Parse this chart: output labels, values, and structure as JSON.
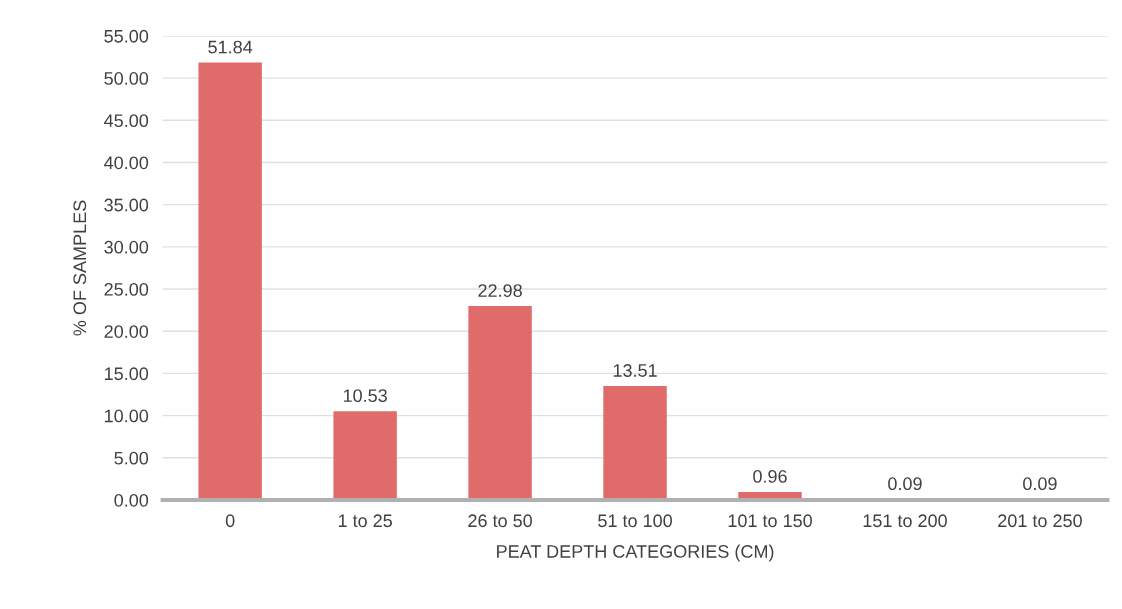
{
  "chart_data": {
    "type": "bar",
    "xlabel": "PEAT DEPTH CATEGORIES (CM)",
    "ylabel": "% OF SAMPLES",
    "categories": [
      "0",
      "1 to 25",
      "26 to 50",
      "51 to 100",
      "101 to 150",
      "151 to 200",
      "201 to 250"
    ],
    "values": [
      51.84,
      10.53,
      22.98,
      13.51,
      0.96,
      0.09,
      0.09
    ],
    "color": "#e06b6b",
    "ylim": [
      0,
      55
    ],
    "yticks": [
      {
        "value": 0,
        "label": "0.00"
      },
      {
        "value": 5,
        "label": "5.00"
      },
      {
        "value": 10,
        "label": "10.00"
      },
      {
        "value": 15,
        "label": "15.00"
      },
      {
        "value": 20,
        "label": "20.00"
      },
      {
        "value": 25,
        "label": "25.00"
      },
      {
        "value": 30,
        "label": "30.00"
      },
      {
        "value": 35,
        "label": "35.00"
      },
      {
        "value": 40,
        "label": "40.00"
      },
      {
        "value": 45,
        "label": "45.00"
      },
      {
        "value": 50,
        "label": "50.00"
      },
      {
        "value": 55,
        "label": "55.00"
      }
    ],
    "grid": "y",
    "data_labels": true
  }
}
